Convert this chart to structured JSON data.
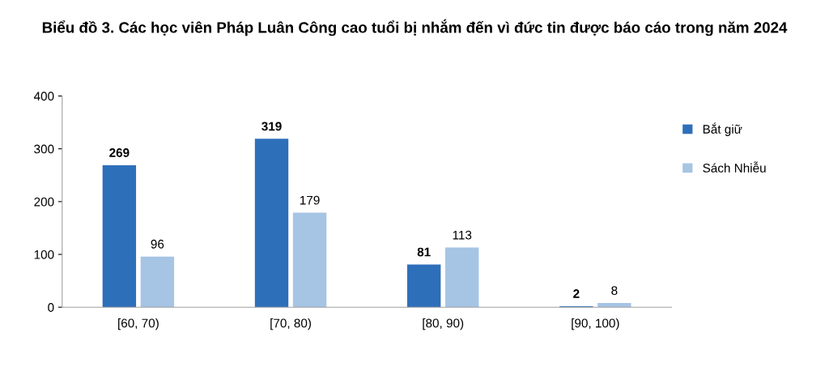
{
  "chart_data": {
    "type": "bar",
    "title": "Biểu đồ 3. Các học viên Pháp Luân Công cao tuổi bị nhắm đến vì đức tin được báo cáo trong năm 2024",
    "categories": [
      "[60, 70)",
      "[70, 80)",
      "[80, 90)",
      "[90, 100)"
    ],
    "series": [
      {
        "name": "Bắt giữ",
        "color": "#2e6fba",
        "values": [
          269,
          319,
          81,
          2
        ]
      },
      {
        "name": "Sách Nhiễu",
        "color": "#a6c4e4",
        "values": [
          96,
          179,
          113,
          8
        ]
      }
    ],
    "ylim": [
      0,
      400
    ],
    "yticks": [
      0,
      100,
      200,
      300,
      400
    ],
    "grid": false,
    "legend": "right",
    "data_labels": true
  }
}
